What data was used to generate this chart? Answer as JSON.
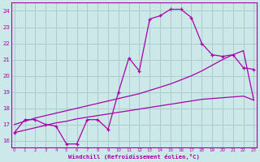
{
  "xlabel": "Windchill (Refroidissement éolien,°C)",
  "bg_color": "#cce8e8",
  "grid_color": "#aacccc",
  "line_color": "#aa00aa",
  "x_ticks": [
    0,
    1,
    2,
    3,
    4,
    5,
    6,
    7,
    8,
    9,
    10,
    11,
    12,
    13,
    14,
    15,
    16,
    17,
    18,
    19,
    20,
    21,
    22,
    23
  ],
  "y_ticks": [
    16,
    17,
    18,
    19,
    20,
    21,
    22,
    23,
    24
  ],
  "xlim": [
    -0.3,
    23.3
  ],
  "ylim": [
    15.6,
    24.5
  ],
  "curve1_x": [
    0,
    1,
    2,
    3,
    4,
    5,
    6,
    7,
    8,
    9,
    10,
    11,
    12,
    13,
    14,
    15,
    16,
    17,
    18,
    19,
    20,
    21,
    22,
    23
  ],
  "curve1_y": [
    16.5,
    17.3,
    17.3,
    17.0,
    16.9,
    15.8,
    15.8,
    17.3,
    17.3,
    16.7,
    19.0,
    21.1,
    20.3,
    23.5,
    23.7,
    24.1,
    24.1,
    23.6,
    22.0,
    21.3,
    21.2,
    21.3,
    20.5,
    20.4
  ],
  "curve2_x": [
    0,
    1,
    2,
    3,
    4,
    5,
    6,
    7,
    8,
    9,
    10,
    11,
    12,
    13,
    14,
    15,
    16,
    17,
    18,
    19,
    20,
    21,
    22,
    23
  ],
  "curve2_y": [
    17.0,
    17.2,
    17.4,
    17.55,
    17.7,
    17.85,
    18.0,
    18.15,
    18.3,
    18.45,
    18.6,
    18.75,
    18.9,
    19.1,
    19.3,
    19.5,
    19.75,
    20.0,
    20.3,
    20.65,
    21.0,
    21.3,
    21.55,
    18.5
  ],
  "curve3_x": [
    0,
    1,
    2,
    3,
    4,
    5,
    6,
    7,
    8,
    9,
    10,
    11,
    12,
    13,
    14,
    15,
    16,
    17,
    18,
    19,
    20,
    21,
    22,
    23
  ],
  "curve3_y": [
    16.5,
    16.65,
    16.8,
    16.95,
    17.1,
    17.2,
    17.35,
    17.45,
    17.55,
    17.65,
    17.75,
    17.85,
    17.95,
    18.05,
    18.15,
    18.25,
    18.35,
    18.45,
    18.55,
    18.6,
    18.65,
    18.7,
    18.75,
    18.5
  ]
}
